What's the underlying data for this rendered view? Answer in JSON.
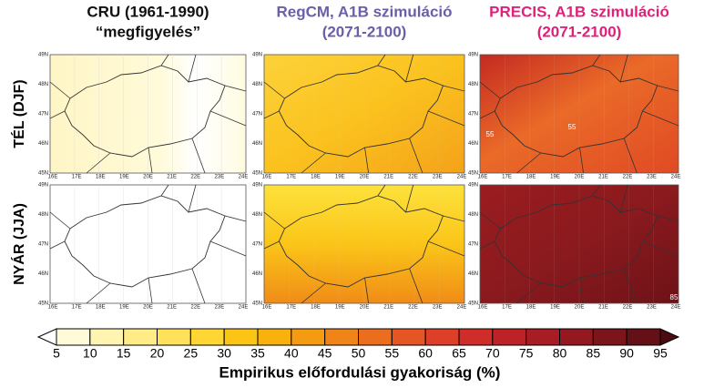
{
  "columns": [
    {
      "title": [
        "CRU (1961-1990)",
        "“megfigyelés”"
      ],
      "color": "#111111"
    },
    {
      "title": [
        "RegCM, A1B szimuláció",
        "(2071-2100)"
      ],
      "color": "#6a5fa8"
    },
    {
      "title": [
        "PRECIS, A1B szimuláció",
        "(2071-2100)"
      ],
      "color": "#e0207a"
    }
  ],
  "rows": [
    "TÉL (DJF)",
    "NYÁR (JJA)"
  ],
  "map_axis": {
    "x_labels": [
      "16E",
      "17E",
      "18E",
      "19E",
      "20E",
      "21E",
      "22E",
      "23E",
      "24E"
    ],
    "y_labels": [
      "45N",
      "46N",
      "47N",
      "48N",
      "49N"
    ]
  },
  "contour_labels": [
    {
      "panel": "PRECIS-DJF",
      "labels": [
        "55",
        "55"
      ]
    },
    {
      "panel": "PRECIS-JJA",
      "labels": [
        "85"
      ]
    }
  ],
  "colorbar": {
    "ticks": [
      5,
      10,
      15,
      20,
      25,
      30,
      35,
      40,
      45,
      50,
      55,
      60,
      65,
      70,
      75,
      80,
      85,
      90,
      95
    ],
    "colors": [
      "#ffffff",
      "#fffbd8",
      "#fff4b0",
      "#ffec86",
      "#ffe25a",
      "#ffd633",
      "#fcc516",
      "#f9b10e",
      "#f59b12",
      "#f08418",
      "#eb6d1e",
      "#e55624",
      "#dd3f28",
      "#d02c2a",
      "#bd2227",
      "#a81c24",
      "#931820",
      "#7c141b",
      "#641016",
      "#4a0c10"
    ],
    "title": "Empirikus előfordulási gyakoriság (%)"
  }
}
